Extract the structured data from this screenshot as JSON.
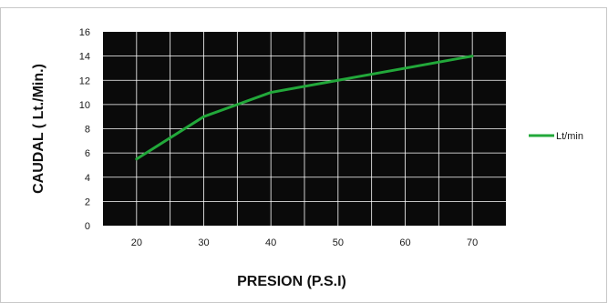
{
  "chart_data": {
    "type": "line",
    "title": "",
    "xlabel": "PRESION  (P.S.I)",
    "ylabel": "CAUDAL ( Lt./Min.)",
    "categories": [
      "20",
      "30",
      "40",
      "50",
      "60",
      "70"
    ],
    "x": [
      20,
      30,
      40,
      50,
      60,
      70
    ],
    "y_ticks": [
      "0",
      "2",
      "4",
      "6",
      "8",
      "10",
      "12",
      "14",
      "16"
    ],
    "ylim": [
      0,
      16
    ],
    "grid": true,
    "legend_position": "right",
    "series": [
      {
        "name": "Lt/min",
        "values": [
          5.5,
          9,
          11,
          12,
          13,
          14
        ],
        "color": "#22a83a"
      }
    ],
    "colors": {
      "plot_background": "#0a0a0a",
      "grid": "#ffffff",
      "line": "#22a83a"
    }
  }
}
